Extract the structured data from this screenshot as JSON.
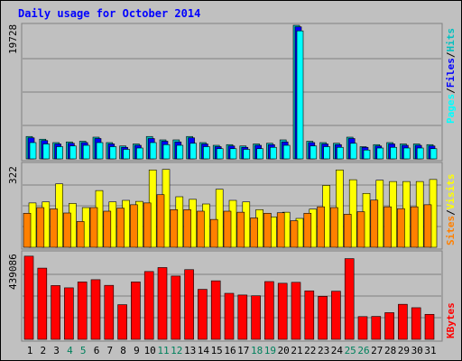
{
  "title": "Daily usage for October 2014",
  "colors": {
    "background": "#C0C0C0",
    "title": "#0000FF",
    "hits": "#00C0C0",
    "files": "#0000FF",
    "pages": "#00FFFF",
    "visits": "#FFFF00",
    "sites": "#FF8000",
    "kbytes": "#FF0000",
    "weekend_day": "#00805C",
    "weekday": "#000000"
  },
  "chart_data": [
    {
      "type": "bar",
      "panel": "hits-files-pages",
      "ymax_label": "19728",
      "ylim": [
        0,
        19728
      ],
      "legend": [
        "Pages",
        "/",
        "Files",
        "/",
        "Hits"
      ],
      "categories": [
        "1",
        "2",
        "3",
        "4",
        "5",
        "6",
        "7",
        "8",
        "9",
        "10",
        "11",
        "12",
        "13",
        "14",
        "15",
        "16",
        "17",
        "18",
        "19",
        "20",
        "21",
        "22",
        "23",
        "24",
        "25",
        "26",
        "27",
        "28",
        "29",
        "30",
        "31"
      ],
      "series": [
        {
          "name": "Hits",
          "values": [
            3300,
            2900,
            2400,
            2500,
            2600,
            3200,
            2400,
            1900,
            2200,
            3300,
            2800,
            2800,
            3300,
            2400,
            2000,
            2100,
            1900,
            2200,
            2300,
            2800,
            19728,
            2600,
            2400,
            2300,
            3200,
            1800,
            2100,
            2400,
            2200,
            2200,
            2100
          ]
        },
        {
          "name": "Files",
          "values": [
            3100,
            2700,
            2200,
            2300,
            2400,
            3000,
            2200,
            1700,
            2000,
            3000,
            2600,
            2500,
            3100,
            2200,
            1800,
            1900,
            1700,
            2000,
            2100,
            2500,
            19500,
            2400,
            2200,
            2100,
            3000,
            1700,
            1900,
            2200,
            2000,
            2000,
            1900
          ]
        },
        {
          "name": "Pages",
          "values": [
            2400,
            2200,
            1800,
            1900,
            2000,
            2400,
            1800,
            1400,
            1600,
            2400,
            2100,
            2000,
            2300,
            1800,
            1500,
            1500,
            1400,
            1500,
            1700,
            2000,
            18900,
            1900,
            1800,
            1700,
            2300,
            1300,
            1600,
            1700,
            1600,
            1600,
            1500
          ]
        }
      ]
    },
    {
      "type": "bar",
      "panel": "visits-sites",
      "ymax_label": "322",
      "ylim": [
        0,
        322
      ],
      "legend": [
        "Sites",
        "/",
        "Visits"
      ],
      "categories": [
        "1",
        "2",
        "3",
        "4",
        "5",
        "6",
        "7",
        "8",
        "9",
        "10",
        "11",
        "12",
        "13",
        "14",
        "15",
        "16",
        "17",
        "18",
        "19",
        "20",
        "21",
        "22",
        "23",
        "24",
        "25",
        "26",
        "27",
        "28",
        "29",
        "30",
        "31"
      ],
      "series": [
        {
          "name": "Visits",
          "values": [
            172,
            176,
            246,
            170,
            154,
            220,
            176,
            182,
            178,
            300,
            302,
            196,
            186,
            168,
            225,
            182,
            176,
            146,
            118,
            136,
            112,
            148,
            240,
            300,
            262,
            209,
            260,
            255,
            255,
            255,
            263
          ]
        },
        {
          "name": "Sites",
          "values": [
            132,
            154,
            149,
            133,
            100,
            154,
            140,
            152,
            165,
            172,
            204,
            146,
            146,
            140,
            108,
            140,
            136,
            114,
            132,
            134,
            103,
            132,
            157,
            154,
            128,
            138,
            183,
            157,
            150,
            157,
            165
          ]
        }
      ]
    },
    {
      "type": "bar",
      "panel": "kbytes",
      "ymax_label": "439086",
      "ylim": [
        0,
        439086
      ],
      "legend": [
        "KBytes"
      ],
      "categories": [
        "1",
        "2",
        "3",
        "4",
        "5",
        "6",
        "7",
        "8",
        "9",
        "10",
        "11",
        "12",
        "13",
        "14",
        "15",
        "16",
        "17",
        "18",
        "19",
        "20",
        "21",
        "22",
        "23",
        "24",
        "25",
        "26",
        "27",
        "28",
        "29",
        "30",
        "31"
      ],
      "series": [
        {
          "name": "KBytes",
          "values": [
            439086,
            376000,
            284000,
            272000,
            303000,
            315000,
            285000,
            183000,
            303000,
            358000,
            379000,
            334000,
            368000,
            264000,
            309000,
            243000,
            234000,
            230000,
            305000,
            296000,
            301000,
            256000,
            227000,
            254000,
            426000,
            120000,
            121000,
            141000,
            185000,
            167000,
            132000
          ]
        }
      ]
    }
  ]
}
